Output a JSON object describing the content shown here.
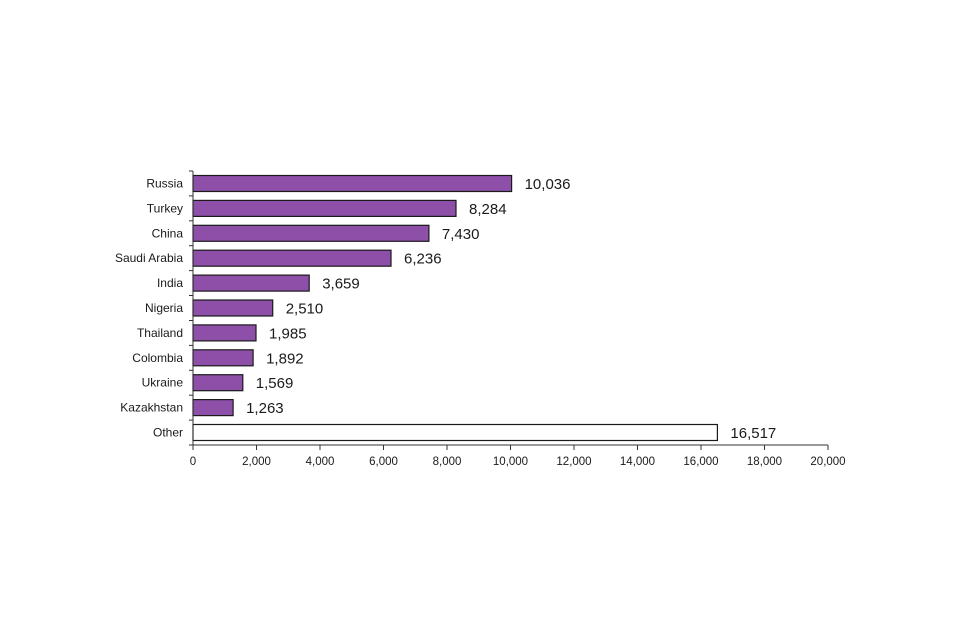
{
  "chart_data": {
    "type": "bar",
    "orientation": "horizontal",
    "categories": [
      "Russia",
      "Turkey",
      "China",
      "Saudi Arabia",
      "India",
      "Nigeria",
      "Thailand",
      "Colombia",
      "Ukraine",
      "Kazakhstan",
      "Other"
    ],
    "values": [
      10036,
      8284,
      7430,
      6236,
      3659,
      2510,
      1985,
      1892,
      1569,
      1263,
      16517
    ],
    "value_labels": [
      "10,036",
      "8,284",
      "7,430",
      "6,236",
      "3,659",
      "2,510",
      "1,985",
      "1,892",
      "1,569",
      "1,263",
      "16,517"
    ],
    "bar_colors": [
      "#8e4fa8",
      "#8e4fa8",
      "#8e4fa8",
      "#8e4fa8",
      "#8e4fa8",
      "#8e4fa8",
      "#8e4fa8",
      "#8e4fa8",
      "#8e4fa8",
      "#8e4fa8",
      "#ffffff"
    ],
    "bar_outline_color": "#1a1a1a",
    "xlim": [
      0,
      20000
    ],
    "xticks": [
      0,
      2000,
      4000,
      6000,
      8000,
      10000,
      12000,
      14000,
      16000,
      18000,
      20000
    ],
    "xtick_labels": [
      "0",
      "2,000",
      "4,000",
      "6,000",
      "8,000",
      "10,000",
      "12,000",
      "14,000",
      "16,000",
      "18,000",
      "20,000"
    ],
    "title": "",
    "xlabel": "",
    "ylabel": "",
    "grid": false,
    "legend": "none"
  }
}
